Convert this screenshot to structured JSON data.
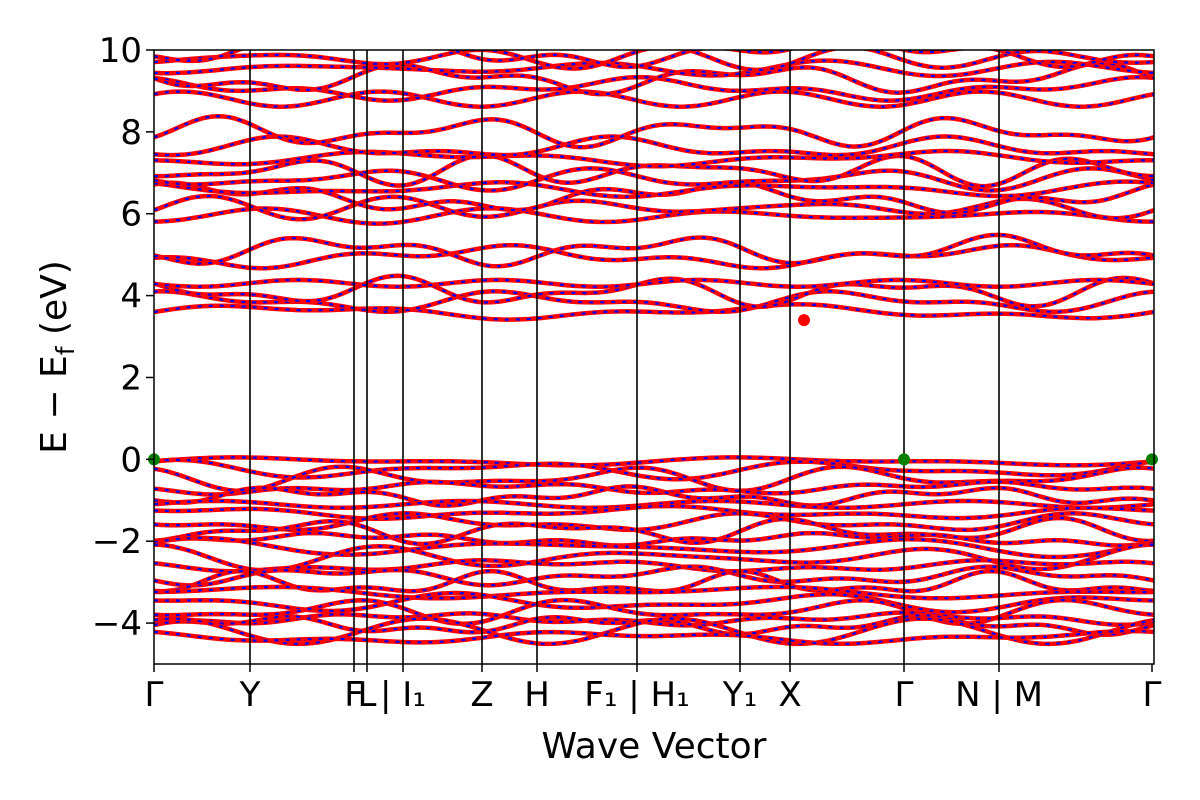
{
  "chart_data": {
    "type": "line",
    "title": "",
    "xlabel": "Wave Vector",
    "ylabel": "E − E_f (eV)",
    "ylabel_parts": {
      "main": "E  −  E",
      "sub": "f",
      "unit": " (eV)"
    },
    "ylim": [
      -5,
      10
    ],
    "yticks": [
      -4,
      -2,
      0,
      2,
      4,
      6,
      8,
      10
    ],
    "ytick_labels": [
      "−4",
      "−2",
      "0",
      "2",
      "4",
      "6",
      "8",
      "10"
    ],
    "xlim": [
      0,
      1
    ],
    "kpoint_ticks": [
      {
        "x": 0.0,
        "label": "Γ"
      },
      {
        "x": 0.096,
        "label": "Y"
      },
      {
        "x": 0.2,
        "label": "F"
      },
      {
        "x": 0.213,
        "label": "L"
      },
      {
        "x": 0.249,
        "label": "| I₁"
      },
      {
        "x": 0.328,
        "label": "Z"
      },
      {
        "x": 0.383,
        "label": "H"
      },
      {
        "x": 0.483,
        "label": "F₁ | H₁"
      },
      {
        "x": 0.586,
        "label": "Y₁"
      },
      {
        "x": 0.636,
        "label": "X"
      },
      {
        "x": 0.75,
        "label": "Γ"
      },
      {
        "x": 0.845,
        "label": "N | M"
      },
      {
        "x": 0.998,
        "label": "Γ"
      }
    ],
    "grid": false,
    "legend": "none",
    "series_style": {
      "solid_color": "#ff0000",
      "dash_color": "#0000ff"
    },
    "marker_colors": {
      "vbm": "#008000",
      "cbm": "#ff0000"
    },
    "conduction_band_base_levels": [
      3.6,
      3.85,
      4.1,
      4.3,
      4.95,
      5.1,
      5.95,
      6.15,
      6.4,
      6.6,
      6.85,
      7.05,
      7.35,
      7.6,
      8.0,
      8.8,
      9.05,
      9.3,
      9.55,
      9.8,
      9.95
    ],
    "valence_band_base_levels": [
      -0.05,
      -0.25,
      -0.45,
      -0.7,
      -0.9,
      -1.1,
      -1.3,
      -1.55,
      -1.75,
      -1.95,
      -2.15,
      -2.4,
      -2.6,
      -2.85,
      -3.05,
      -3.25,
      -3.5,
      -3.7,
      -3.9,
      -4.05,
      -4.2,
      -4.35
    ],
    "vbm_points": [
      [
        0.0,
        0.0
      ],
      [
        0.75,
        0.0
      ],
      [
        0.998,
        0.0
      ]
    ],
    "cbm_points": [
      [
        0.65,
        3.4
      ]
    ]
  }
}
